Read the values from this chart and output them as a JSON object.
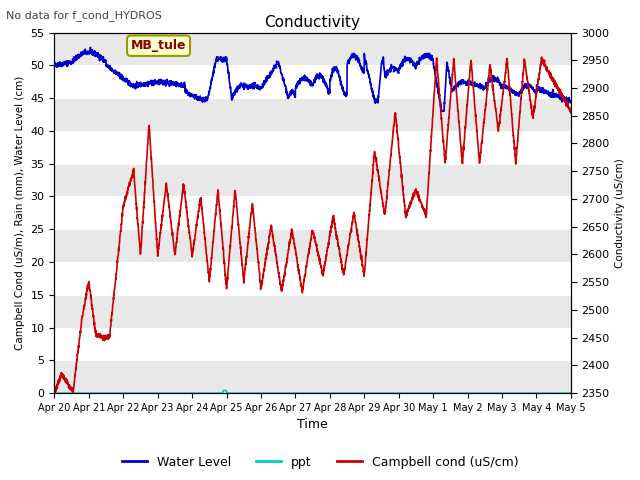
{
  "title": "Conductivity",
  "subtitle": "No data for f_cond_HYDROS",
  "xlabel": "Time",
  "ylabel_left": "Campbell Cond (uS/m), Rain (mm), Water Level (cm)",
  "ylabel_right": "Conductivity (uS/cm)",
  "ylim_left": [
    0,
    55
  ],
  "ylim_right": [
    2350,
    3000
  ],
  "yticks_left": [
    0,
    5,
    10,
    15,
    20,
    25,
    30,
    35,
    40,
    45,
    50,
    55
  ],
  "yticks_right": [
    2350,
    2400,
    2450,
    2500,
    2550,
    2600,
    2650,
    2700,
    2750,
    2800,
    2850,
    2900,
    2950,
    3000
  ],
  "xtick_labels": [
    "Apr 20",
    "Apr 21",
    "Apr 22",
    "Apr 23",
    "Apr 24",
    "Apr 25",
    "Apr 26",
    "Apr 27",
    "Apr 28",
    "Apr 29",
    "Apr 30",
    "May 1",
    "May 2",
    "May 3",
    "May 4",
    "May 5"
  ],
  "annotation_box": "MB_tule",
  "bg_color_light": "#e8e8e8",
  "bg_color_white": "#f5f5f5",
  "grid_color": "#cccccc",
  "water_level_color": "#0000cc",
  "ppt_color": "#00cccc",
  "campbell_color": "#cc0000",
  "legend_entries": [
    "Water Level",
    "ppt",
    "Campbell cond (uS/cm)"
  ]
}
